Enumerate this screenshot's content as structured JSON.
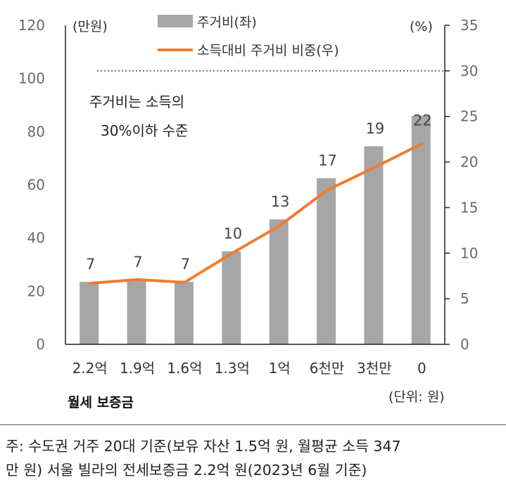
{
  "chart_data": {
    "type": "bar+line",
    "categories": [
      "2.2억",
      "1.9억",
      "1.6억",
      "1.3억",
      "1억",
      "6천만",
      "3천만",
      "0"
    ],
    "series": [
      {
        "name": "주거비(좌)",
        "type": "bar",
        "axis": "left",
        "color": "#a6a6a6",
        "values": [
          23.5,
          24,
          23.5,
          35,
          47,
          62.5,
          74.5,
          86
        ]
      },
      {
        "name": "소득대비 주거비 비중(우)",
        "type": "line",
        "axis": "right",
        "color": "#ed7d31",
        "values": [
          6.7,
          7.1,
          6.8,
          10,
          13,
          16.9,
          19.4,
          22
        ]
      }
    ],
    "data_labels": [
      "7",
      "7",
      "7",
      "10",
      "13",
      "17",
      "19",
      "22"
    ],
    "left_axis": {
      "unit": "(만원)",
      "ylim": [
        0,
        120
      ],
      "ticks": [
        0,
        20,
        40,
        60,
        80,
        100,
        120
      ]
    },
    "right_axis": {
      "unit": "(%)",
      "ylim": [
        0,
        35
      ],
      "ticks": [
        0,
        5,
        10,
        15,
        20,
        25,
        30,
        35
      ]
    },
    "reference_line": {
      "axis": "right",
      "value": 30,
      "style": "dotted"
    },
    "annotation": [
      "주거비는 소득의",
      "30%이하 수준"
    ],
    "xlabel": "월세 보증금",
    "unit_note": "(단위: 원)",
    "legend_position": "top-center"
  },
  "footnote": {
    "line1": "주: 수도권 거주 20대 기준(보유 자산 1.5억 원, 월평균 소득 347",
    "line2": "만 원) 서울 빌라의 전세보증금 2.2억 원(2023년 6월 기준)"
  }
}
